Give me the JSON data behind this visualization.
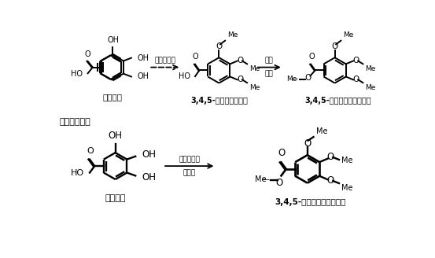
{
  "bg_color": "#ffffff",
  "top_row": {
    "reactant_label": "没食子酸",
    "reagent1": "硫酸二甲酯",
    "product1_label": "3,4,5-三甲氧基苯甲酸",
    "reagent2_top": "甲醇",
    "reagent2_bot": "硫酸",
    "product2_label": "3,4,5-三甲氧基苯甲酸甲酯"
  },
  "bottom_row": {
    "label_method": "一步合成法：",
    "reactant_label": "没食子酸",
    "reagent_top": "硫酸二甲酯",
    "reagent_bot": "硫酸鿣",
    "product_label": "3,4,5-三甲氧基苯甲酸甲酯"
  }
}
